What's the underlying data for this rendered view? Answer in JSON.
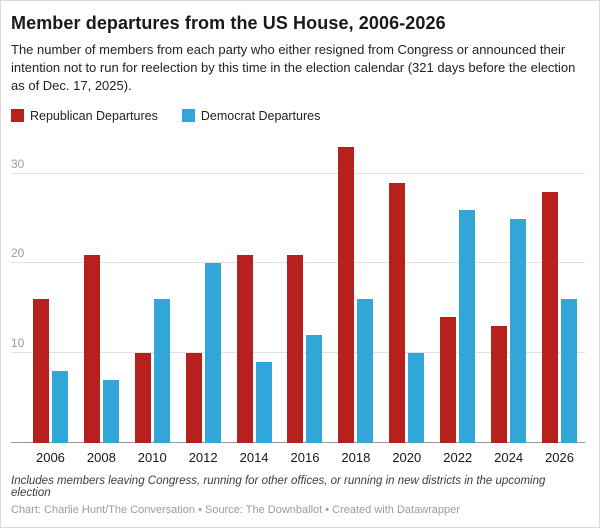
{
  "header": {
    "title": "Member departures from the US House, 2006-2026",
    "subtitle": "The number of members from each party who either resigned from Congress or announced their intention not to run for reelection by this time in the election calendar (321 days before the election as of Dec. 17, 2025)."
  },
  "legend": {
    "items": [
      {
        "label": "Republican Departures",
        "color": "#b7211d"
      },
      {
        "label": "Democrat Departures",
        "color": "#30a6d9"
      }
    ]
  },
  "chart_data": {
    "type": "bar",
    "title": "Member departures from the US House, 2006-2026",
    "categories": [
      "2006",
      "2008",
      "2010",
      "2012",
      "2014",
      "2016",
      "2018",
      "2020",
      "2022",
      "2024",
      "2026"
    ],
    "series": [
      {
        "name": "Republican Departures",
        "color": "#b7211d",
        "values": [
          16,
          21,
          10,
          10,
          21,
          21,
          33,
          29,
          14,
          13,
          28
        ]
      },
      {
        "name": "Democrat Departures",
        "color": "#30a6d9",
        "values": [
          8,
          7,
          16,
          20,
          9,
          12,
          16,
          10,
          26,
          25,
          16
        ]
      }
    ],
    "xlabel": "",
    "ylabel": "",
    "yticks": [
      10,
      20,
      30
    ],
    "ylim": [
      0,
      33.5
    ],
    "grid": true,
    "legend_position": "top"
  },
  "footer": {
    "note": "Includes members leaving Congress, running for other offices, or running in new districts in the upcoming election",
    "credit": "Chart: Charlie Hunt/The Conversation • Source: The Downballot • Created with Datawrapper"
  }
}
